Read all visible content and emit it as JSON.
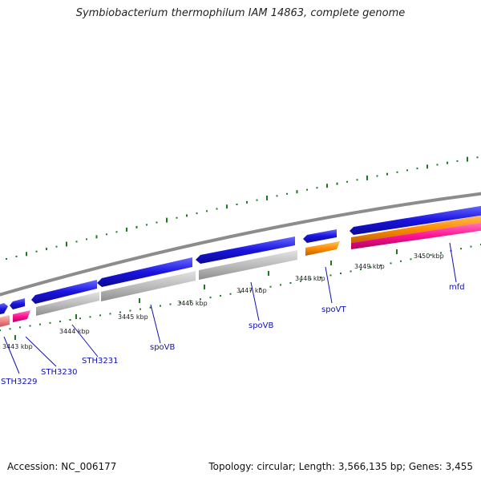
{
  "header": {
    "title": "Symbiobacterium thermophilum IAM 14863, complete genome"
  },
  "footer": {
    "accession": "Accession: NC_006177",
    "summary": "Topology: circular; Length: 3,566,135 bp; Genes: 3,455"
  },
  "colors": {
    "backbone": "#8c8c8c",
    "forward_gene": "#1a14e0",
    "reverse_gene": "#b8b8b8",
    "orange_feature": "#ff8c00",
    "pink_feature": "#ff1493",
    "salmon_feature": "#f08080",
    "gc_ticks": "#1f7a1f",
    "label_text": "#1010b8"
  },
  "scale_labels": [
    "3443 kbp",
    "3444 kbp",
    "3445 kbp",
    "3446 kbp",
    "3447 kbp",
    "3448 kbp",
    "3449 kbp",
    "3450 kbp"
  ],
  "gene_labels": [
    "STH3229",
    "STH3230",
    "STH3231",
    "spoVB",
    "spoVB",
    "spoVT",
    "mfd"
  ]
}
